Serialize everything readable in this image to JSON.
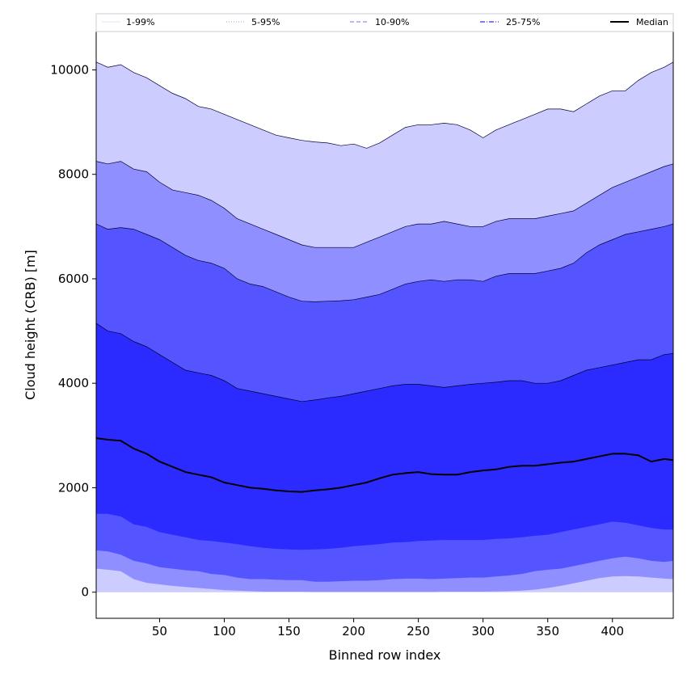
{
  "chart_data": {
    "type": "area",
    "title": "",
    "xlabel": "Binned row index",
    "ylabel": "Cloud height (CRB) [m]",
    "xlim": [
      1,
      447
    ],
    "ylim": [
      -500,
      10750
    ],
    "x_ticks": [
      50,
      100,
      150,
      200,
      250,
      300,
      350,
      400
    ],
    "y_ticks": [
      0,
      2000,
      4000,
      6000,
      8000,
      10000
    ],
    "grid": false,
    "legend_position": "top",
    "legend": [
      {
        "label": "1-99%",
        "color": "#d8d8f0",
        "style": "solid-thin"
      },
      {
        "label": "5-95%",
        "color": "#a0a0dd",
        "style": "dotted"
      },
      {
        "label": "10-90%",
        "color": "#8f8fe8",
        "style": "dashed"
      },
      {
        "label": "25-75%",
        "color": "#5555e0",
        "style": "dashdot"
      },
      {
        "label": "Median",
        "color": "#000000",
        "style": "solid-thick"
      }
    ],
    "x": [
      1,
      10,
      20,
      30,
      40,
      50,
      60,
      70,
      80,
      90,
      100,
      110,
      120,
      130,
      140,
      150,
      160,
      170,
      180,
      190,
      200,
      210,
      220,
      230,
      240,
      250,
      260,
      270,
      280,
      290,
      300,
      310,
      320,
      330,
      340,
      350,
      360,
      370,
      380,
      390,
      400,
      410,
      420,
      430,
      440,
      447
    ],
    "series": [
      {
        "name": "99%",
        "values": [
          10150,
          10050,
          10100,
          9950,
          9850,
          9700,
          9550,
          9450,
          9300,
          9250,
          9150,
          9050,
          8950,
          8850,
          8750,
          8700,
          8650,
          8620,
          8600,
          8550,
          8580,
          8500,
          8600,
          8750,
          8900,
          8950,
          8950,
          8980,
          8950,
          8850,
          8700,
          8850,
          8950,
          9050,
          9150,
          9250,
          9250,
          9200,
          9350,
          9500,
          9600,
          9600,
          9800,
          9950,
          10050,
          10150
        ]
      },
      {
        "name": "95%",
        "values": [
          8250,
          8200,
          8250,
          8100,
          8050,
          7850,
          7700,
          7650,
          7600,
          7500,
          7350,
          7150,
          7050,
          6950,
          6850,
          6750,
          6650,
          6600,
          6600,
          6600,
          6600,
          6700,
          6800,
          6900,
          7000,
          7050,
          7050,
          7100,
          7050,
          7000,
          7000,
          7100,
          7150,
          7150,
          7150,
          7200,
          7250,
          7300,
          7450,
          7600,
          7750,
          7850,
          7950,
          8050,
          8150,
          8200
        ]
      },
      {
        "name": "90%",
        "values": [
          7050,
          6950,
          6980,
          6950,
          6850,
          6750,
          6600,
          6450,
          6350,
          6300,
          6200,
          6000,
          5900,
          5850,
          5750,
          5650,
          5570,
          5560,
          5570,
          5580,
          5600,
          5650,
          5700,
          5800,
          5900,
          5950,
          5980,
          5950,
          5980,
          5980,
          5950,
          6050,
          6100,
          6100,
          6100,
          6150,
          6200,
          6300,
          6500,
          6650,
          6750,
          6850,
          6900,
          6950,
          7000,
          7050
        ]
      },
      {
        "name": "75%",
        "values": [
          5150,
          5000,
          4950,
          4800,
          4700,
          4550,
          4400,
          4250,
          4200,
          4150,
          4050,
          3900,
          3850,
          3800,
          3750,
          3700,
          3650,
          3680,
          3720,
          3750,
          3800,
          3850,
          3900,
          3950,
          3980,
          3980,
          3950,
          3920,
          3950,
          3980,
          4000,
          4020,
          4050,
          4050,
          4000,
          4000,
          4050,
          4150,
          4250,
          4300,
          4350,
          4400,
          4450,
          4450,
          4550,
          4570
        ]
      },
      {
        "name": "Median",
        "values": [
          2950,
          2920,
          2900,
          2750,
          2650,
          2500,
          2400,
          2300,
          2250,
          2200,
          2100,
          2050,
          2000,
          1980,
          1950,
          1930,
          1920,
          1950,
          1970,
          2000,
          2050,
          2100,
          2180,
          2250,
          2280,
          2300,
          2260,
          2250,
          2250,
          2300,
          2330,
          2350,
          2400,
          2420,
          2420,
          2450,
          2480,
          2500,
          2550,
          2600,
          2650,
          2650,
          2620,
          2500,
          2550,
          2530
        ]
      },
      {
        "name": "25%",
        "values": [
          1500,
          1500,
          1450,
          1300,
          1250,
          1150,
          1100,
          1050,
          1000,
          980,
          950,
          920,
          880,
          850,
          830,
          820,
          810,
          820,
          830,
          850,
          880,
          900,
          920,
          950,
          960,
          980,
          990,
          1000,
          1000,
          1000,
          1000,
          1020,
          1030,
          1050,
          1080,
          1100,
          1150,
          1200,
          1250,
          1300,
          1350,
          1330,
          1280,
          1230,
          1200,
          1200
        ]
      },
      {
        "name": "10%",
        "values": [
          800,
          780,
          720,
          600,
          550,
          480,
          450,
          420,
          400,
          350,
          330,
          280,
          250,
          250,
          240,
          230,
          230,
          200,
          200,
          210,
          220,
          220,
          230,
          250,
          260,
          260,
          250,
          260,
          270,
          280,
          280,
          300,
          320,
          350,
          400,
          430,
          450,
          500,
          550,
          600,
          650,
          680,
          650,
          600,
          580,
          600
        ]
      },
      {
        "name": "5%",
        "values": [
          450,
          430,
          400,
          250,
          180,
          150,
          120,
          100,
          80,
          60,
          40,
          30,
          20,
          10,
          10,
          10,
          10,
          5,
          5,
          5,
          5,
          5,
          5,
          5,
          5,
          5,
          5,
          10,
          10,
          10,
          10,
          15,
          20,
          30,
          50,
          80,
          120,
          170,
          220,
          270,
          300,
          310,
          300,
          280,
          260,
          250
        ]
      },
      {
        "name": "1%",
        "values": [
          0,
          0,
          0,
          0,
          0,
          0,
          0,
          0,
          0,
          0,
          0,
          0,
          0,
          0,
          0,
          0,
          0,
          0,
          0,
          0,
          0,
          0,
          0,
          0,
          0,
          0,
          0,
          0,
          0,
          0,
          0,
          0,
          0,
          0,
          0,
          0,
          0,
          0,
          0,
          0,
          0,
          0,
          0,
          0,
          0,
          0
        ]
      }
    ],
    "band_colors": {
      "p1_99": "#ccccff",
      "p5_95": "#8f8fff",
      "p10_90": "#5555ff",
      "p25_75": "#2b2bff",
      "median_line": "#000000"
    }
  }
}
